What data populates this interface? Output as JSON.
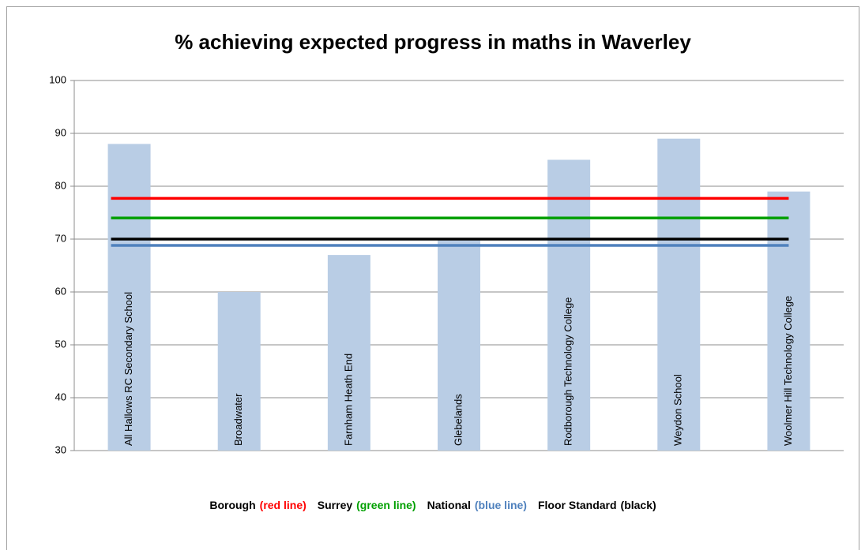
{
  "chart_data": {
    "type": "bar",
    "title": "% achieving expected progress in maths in Waverley",
    "categories": [
      "All Hallows RC Secondary School",
      "Broadwater",
      "Farnham Heath End",
      "Glebelands",
      "Rodborough Technology College",
      "Weydon School",
      "Woolmer Hill Technology College"
    ],
    "values": [
      88,
      60,
      67,
      70,
      85,
      89,
      79
    ],
    "color": "#b9cde5",
    "lines": [
      {
        "name": "Borough",
        "note": "(red line)",
        "color": "#ff0000",
        "value": 77.7
      },
      {
        "name": "Surrey",
        "note": "(green line)",
        "color": "#00a000",
        "value": 74
      },
      {
        "name": "National",
        "note": "(blue line)",
        "color": "#4f81bd",
        "value": 68.8
      },
      {
        "name": "Floor Standard",
        "note": "(black)",
        "color": "#000000",
        "value": 70
      }
    ],
    "ylim": [
      30,
      100
    ],
    "yticks": [
      30,
      40,
      50,
      60,
      70,
      80,
      90,
      100
    ],
    "grid": true
  }
}
